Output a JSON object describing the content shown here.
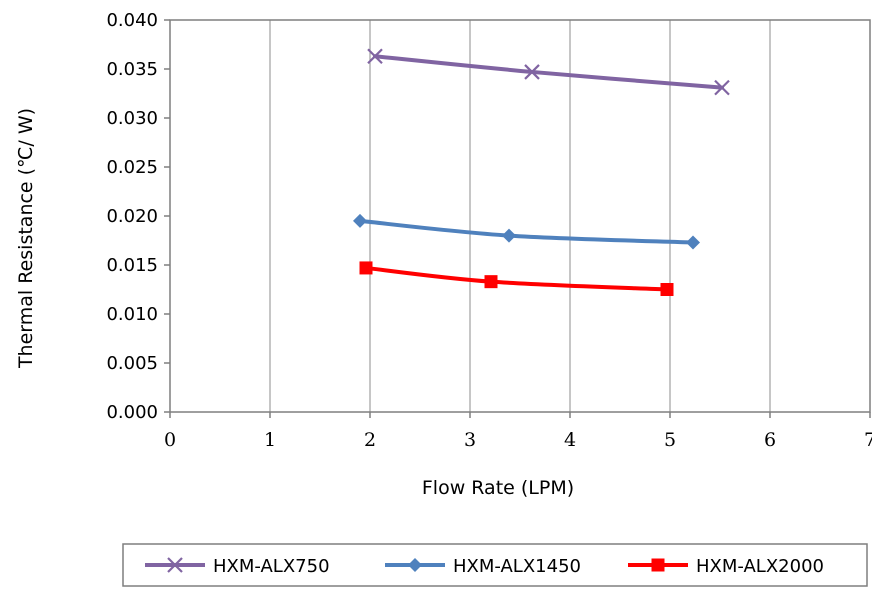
{
  "chart_data": {
    "type": "line",
    "title": "",
    "xlabel": "Flow Rate (LPM)",
    "ylabel": "Thermal Resistance (℃/   W)",
    "xlim": [
      0,
      7
    ],
    "ylim": [
      0,
      0.04
    ],
    "x_ticks": [
      "0",
      "1",
      "2",
      "3",
      "4",
      "5",
      "6",
      "7"
    ],
    "y_ticks": [
      "0.000",
      "0.005",
      "0.010",
      "0.015",
      "0.020",
      "0.025",
      "0.030",
      "0.035",
      "0.040"
    ],
    "grid": "vertical",
    "smooth": true,
    "legend_position": "bottom",
    "series": [
      {
        "name": "HXM-ALX750",
        "color": "#8064A2",
        "marker": "x",
        "points": [
          [
            2.05,
            0.0363
          ],
          [
            3.62,
            0.0347
          ],
          [
            5.52,
            0.0331
          ]
        ]
      },
      {
        "name": "HXM-ALX1450",
        "color": "#4F81BD",
        "marker": "diamond",
        "points": [
          [
            1.9,
            0.0195
          ],
          [
            3.39,
            0.018
          ],
          [
            5.23,
            0.0173
          ]
        ]
      },
      {
        "name": "HXM-ALX2000",
        "color": "#FF0000",
        "marker": "square",
        "points": [
          [
            1.96,
            0.0147
          ],
          [
            3.21,
            0.0133
          ],
          [
            4.97,
            0.0125
          ]
        ]
      }
    ]
  }
}
